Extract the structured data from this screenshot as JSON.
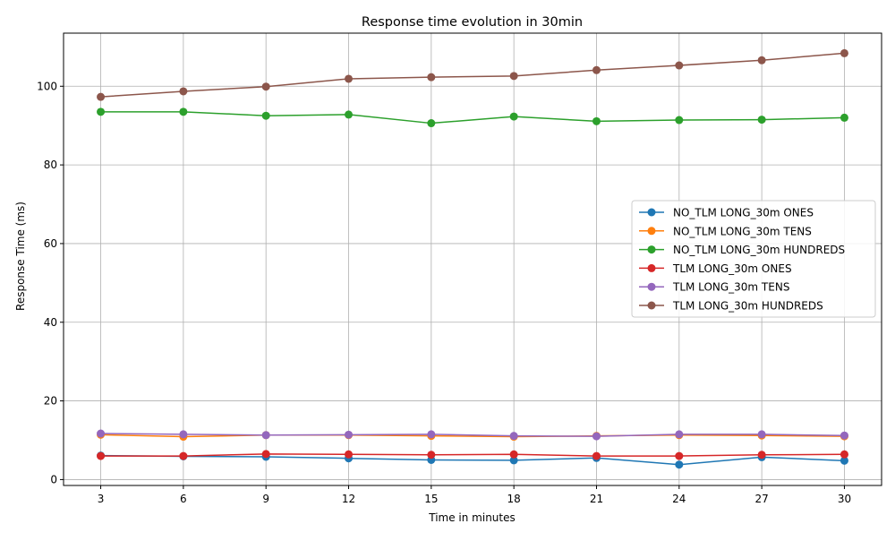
{
  "chart_data": {
    "type": "line",
    "title": "Response time evolution in 30min",
    "xlabel": "Time in minutes",
    "ylabel": "Response Time (ms)",
    "x": [
      3,
      6,
      9,
      12,
      15,
      18,
      21,
      24,
      27,
      30
    ],
    "xticks": [
      3,
      6,
      9,
      12,
      15,
      18,
      21,
      24,
      27,
      30
    ],
    "xlim": [
      1.65,
      31.35
    ],
    "ylim": [
      -1.5,
      113.5
    ],
    "yticks": [
      0,
      20,
      40,
      60,
      80,
      100
    ],
    "grid": true,
    "legend_position": "center-right",
    "series": [
      {
        "name": "NO_TLM LONG_30m ONES",
        "color": "#1f77b4",
        "values": [
          6.1,
          5.9,
          5.8,
          5.4,
          5.0,
          4.9,
          5.5,
          3.8,
          5.7,
          4.8
        ]
      },
      {
        "name": "NO_TLM LONG_30m TENS",
        "color": "#ff7f0e",
        "values": [
          11.4,
          10.9,
          11.3,
          11.3,
          11.1,
          10.9,
          11.1,
          11.3,
          11.2,
          11.0
        ]
      },
      {
        "name": "NO_TLM LONG_30m HUNDREDS",
        "color": "#2ca02c",
        "values": [
          93.5,
          93.5,
          92.5,
          92.8,
          90.6,
          92.3,
          91.1,
          91.4,
          91.5,
          92.0
        ]
      },
      {
        "name": "TLM LONG_30m ONES",
        "color": "#d62728",
        "values": [
          6.0,
          6.0,
          6.5,
          6.4,
          6.3,
          6.4,
          6.0,
          6.0,
          6.3,
          6.4
        ]
      },
      {
        "name": "TLM LONG_30m TENS",
        "color": "#9467bd",
        "values": [
          11.7,
          11.5,
          11.3,
          11.4,
          11.5,
          11.1,
          11.0,
          11.5,
          11.5,
          11.2
        ]
      },
      {
        "name": "TLM LONG_30m HUNDREDS",
        "color": "#8c564b",
        "values": [
          97.3,
          98.7,
          99.9,
          101.9,
          102.3,
          102.6,
          104.1,
          105.3,
          106.6,
          108.4
        ]
      }
    ]
  }
}
